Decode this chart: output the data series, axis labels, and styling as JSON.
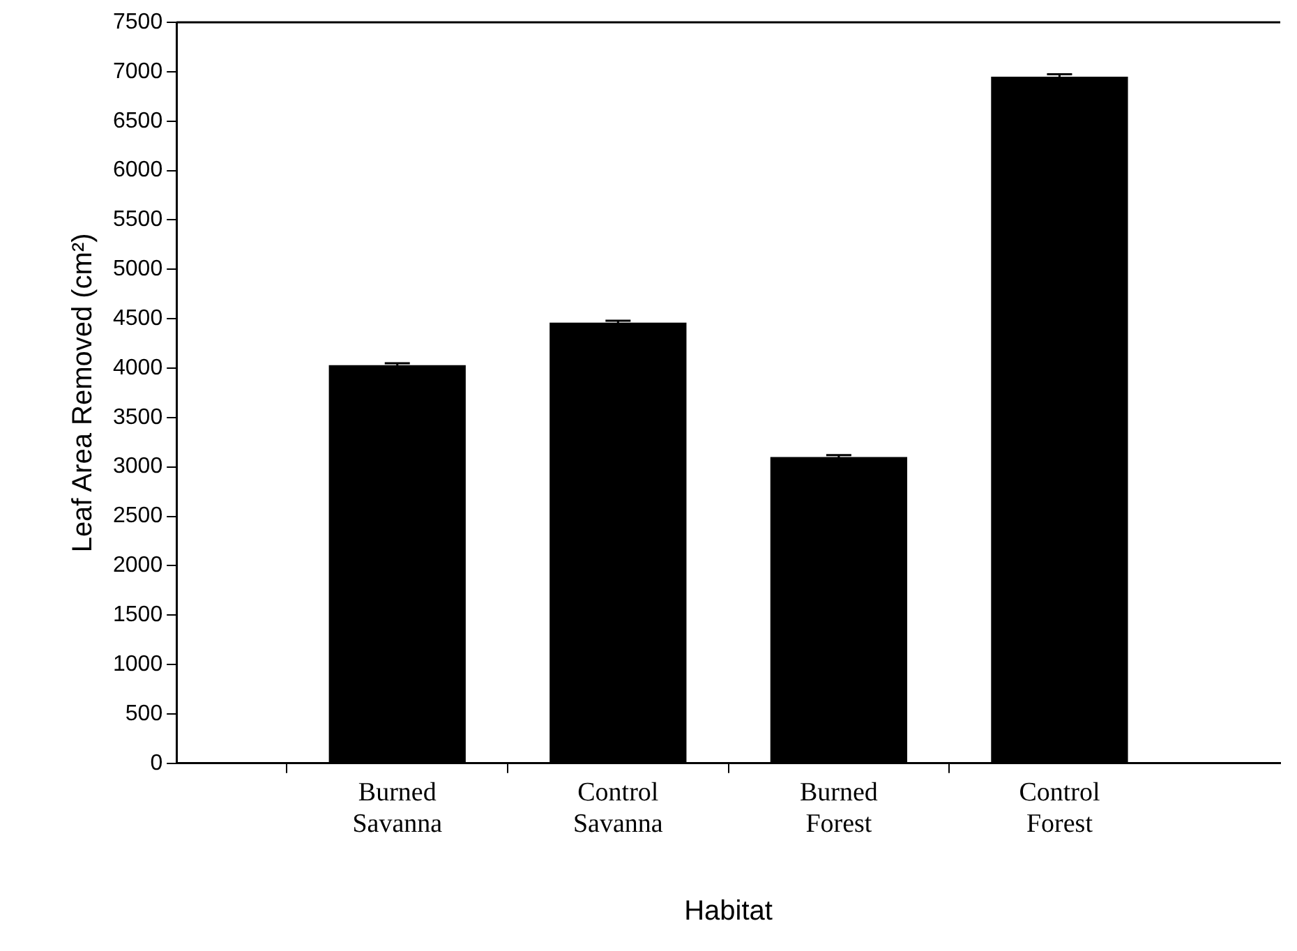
{
  "chart_data": {
    "type": "bar",
    "xlabel": "Habitat",
    "ylabel": "Leaf Area Removed (cm²)",
    "categories": [
      null,
      "Burned Savanna",
      "Control Savanna",
      "Burned Forest",
      "Control Forest",
      null
    ],
    "values": [
      null,
      4030,
      4460,
      3100,
      6950,
      null
    ],
    "errors": [
      null,
      20,
      20,
      20,
      25,
      null
    ],
    "color": "#000000",
    "ylim": [
      0,
      7500
    ],
    "yticks": [
      0,
      500,
      1000,
      1500,
      2000,
      2500,
      3000,
      3500,
      4000,
      4500,
      5000,
      5500,
      6000,
      6500,
      7000,
      7500
    ]
  }
}
